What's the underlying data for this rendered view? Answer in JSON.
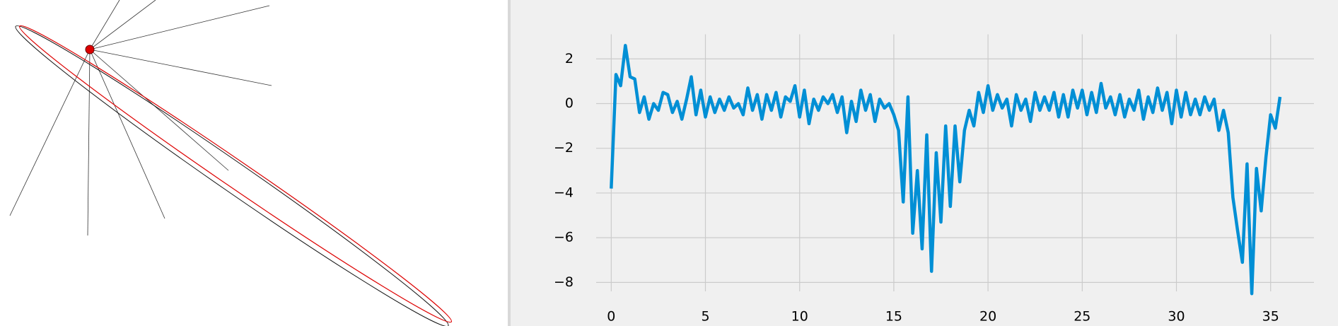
{
  "chart_data": {
    "type": "line",
    "x": [
      0,
      0.25,
      0.5,
      0.75,
      1,
      1.25,
      1.5,
      1.75,
      2,
      2.25,
      2.5,
      2.75,
      3,
      3.25,
      3.5,
      3.75,
      4,
      4.25,
      4.5,
      4.75,
      5,
      5.25,
      5.5,
      5.75,
      6,
      6.25,
      6.5,
      6.75,
      7,
      7.25,
      7.5,
      7.75,
      8,
      8.25,
      8.5,
      8.75,
      9,
      9.25,
      9.5,
      9.75,
      10,
      10.25,
      10.5,
      10.75,
      11,
      11.25,
      11.5,
      11.75,
      12,
      12.25,
      12.5,
      12.75,
      13,
      13.25,
      13.5,
      13.75,
      14,
      14.25,
      14.5,
      14.75,
      15,
      15.25,
      15.5,
      15.75,
      16,
      16.25,
      16.5,
      16.75,
      17,
      17.25,
      17.5,
      17.75,
      18,
      18.25,
      18.5,
      18.75,
      19,
      19.25,
      19.5,
      19.75,
      20,
      20.25,
      20.5,
      20.75,
      21,
      21.25,
      21.5,
      21.75,
      22,
      22.25,
      22.5,
      22.75,
      23,
      23.25,
      23.5,
      23.75,
      24,
      24.25,
      24.5,
      24.75,
      25,
      25.25,
      25.5,
      25.75,
      26,
      26.25,
      26.5,
      26.75,
      27,
      27.25,
      27.5,
      27.75,
      28,
      28.25,
      28.5,
      28.75,
      29,
      29.25,
      29.5,
      29.75,
      30,
      30.25,
      30.5,
      30.75,
      31,
      31.25,
      31.5,
      31.75,
      32,
      32.25,
      32.5,
      32.75,
      33,
      33.25,
      33.5,
      33.75,
      34,
      34.25,
      34.5,
      34.75,
      35,
      35.25,
      35.5
    ],
    "series": [
      {
        "color": "#008fd5",
        "values": [
          -3.8,
          1.3,
          0.8,
          2.6,
          1.2,
          1.1,
          -0.4,
          0.3,
          -0.7,
          0.0,
          -0.3,
          0.5,
          0.4,
          -0.4,
          0.1,
          -0.7,
          0.2,
          1.2,
          -0.5,
          0.6,
          -0.6,
          0.3,
          -0.4,
          0.2,
          -0.3,
          0.3,
          -0.2,
          0.0,
          -0.5,
          0.7,
          -0.3,
          0.4,
          -0.7,
          0.4,
          -0.3,
          0.5,
          -0.6,
          0.3,
          0.1,
          0.8,
          -0.6,
          0.6,
          -0.9,
          0.2,
          -0.3,
          0.3,
          0.0,
          0.4,
          -0.4,
          0.3,
          -1.3,
          0.1,
          -0.8,
          0.6,
          -0.3,
          0.4,
          -0.8,
          0.2,
          -0.2,
          0.0,
          -0.5,
          -1.2,
          -4.4,
          0.3,
          -5.8,
          -3.0,
          -6.5,
          -1.4,
          -7.5,
          -2.2,
          -5.3,
          -1.0,
          -4.6,
          -1.0,
          -3.5,
          -1.2,
          -0.3,
          -1.0,
          0.5,
          -0.4,
          0.8,
          -0.3,
          0.4,
          -0.2,
          0.2,
          -1.0,
          0.4,
          -0.3,
          0.2,
          -0.8,
          0.5,
          -0.3,
          0.3,
          -0.3,
          0.5,
          -0.6,
          0.4,
          -0.6,
          0.6,
          -0.2,
          0.6,
          -0.5,
          0.5,
          -0.4,
          0.9,
          -0.2,
          0.3,
          -0.5,
          0.4,
          -0.6,
          0.2,
          -0.3,
          0.6,
          -0.7,
          0.3,
          -0.4,
          0.7,
          -0.3,
          0.5,
          -0.9,
          0.6,
          -0.6,
          0.5,
          -0.5,
          0.2,
          -0.5,
          0.3,
          -0.3,
          0.2,
          -1.2,
          -0.3,
          -1.3,
          -4.2,
          -5.7,
          -7.1,
          -2.7,
          -8.5,
          -2.9,
          -4.8,
          -2.4,
          -0.5,
          -1.1,
          0.3
        ]
      }
    ],
    "xlim": [
      -0.8,
      37.3
    ],
    "ylim": [
      -8.4,
      3.1
    ],
    "xticks": [
      0,
      5,
      10,
      15,
      20,
      25,
      30,
      35
    ],
    "yticks": [
      {
        "value": -8,
        "label": "−8"
      },
      {
        "value": -6,
        "label": "−6"
      },
      {
        "value": -4,
        "label": "−4"
      },
      {
        "value": -2,
        "label": "−2"
      },
      0,
      2
    ],
    "grid": true
  }
}
